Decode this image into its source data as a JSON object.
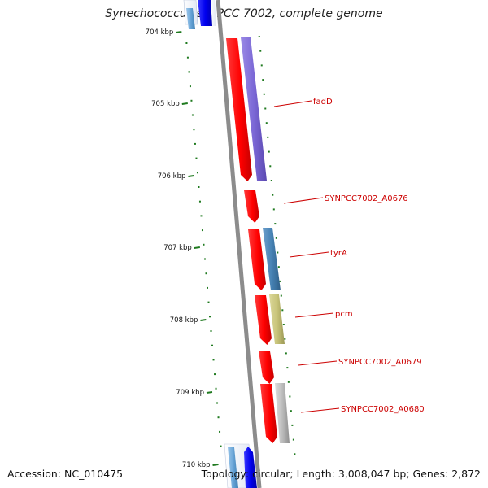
{
  "title": "Synechococcus sp. PCC 7002, complete genome",
  "footer": {
    "accession": "Accession: NC_010475",
    "summary": "Topology: circular; Length: 3,008,047 bp; Genes: 2,872"
  },
  "ticks": [
    "704 kbp",
    "705 kbp",
    "706 kbp",
    "707 kbp",
    "708 kbp",
    "709 kbp",
    "710 kbp"
  ],
  "genes": [
    {
      "label": "fadD",
      "feature_color": "#7b68d6"
    },
    {
      "label": "SYNPCC7002_A0676",
      "feature_color": ""
    },
    {
      "label": "tyrA",
      "feature_color": "#4682b4"
    },
    {
      "label": "pcm",
      "feature_color": "#c8c47a"
    },
    {
      "label": "SYNPCC7002_A0679",
      "feature_color": ""
    },
    {
      "label": "SYNPCC7002_A0680",
      "feature_color": "#bdbdbd"
    }
  ],
  "colors": {
    "cds": "#ff0000",
    "label": "#cc0000",
    "tick": "#1f7a1f",
    "backbone": "#8c8c8c",
    "neighbor_blue": "#0000ee",
    "neighbor_lightblue": "#6aa6d8"
  }
}
